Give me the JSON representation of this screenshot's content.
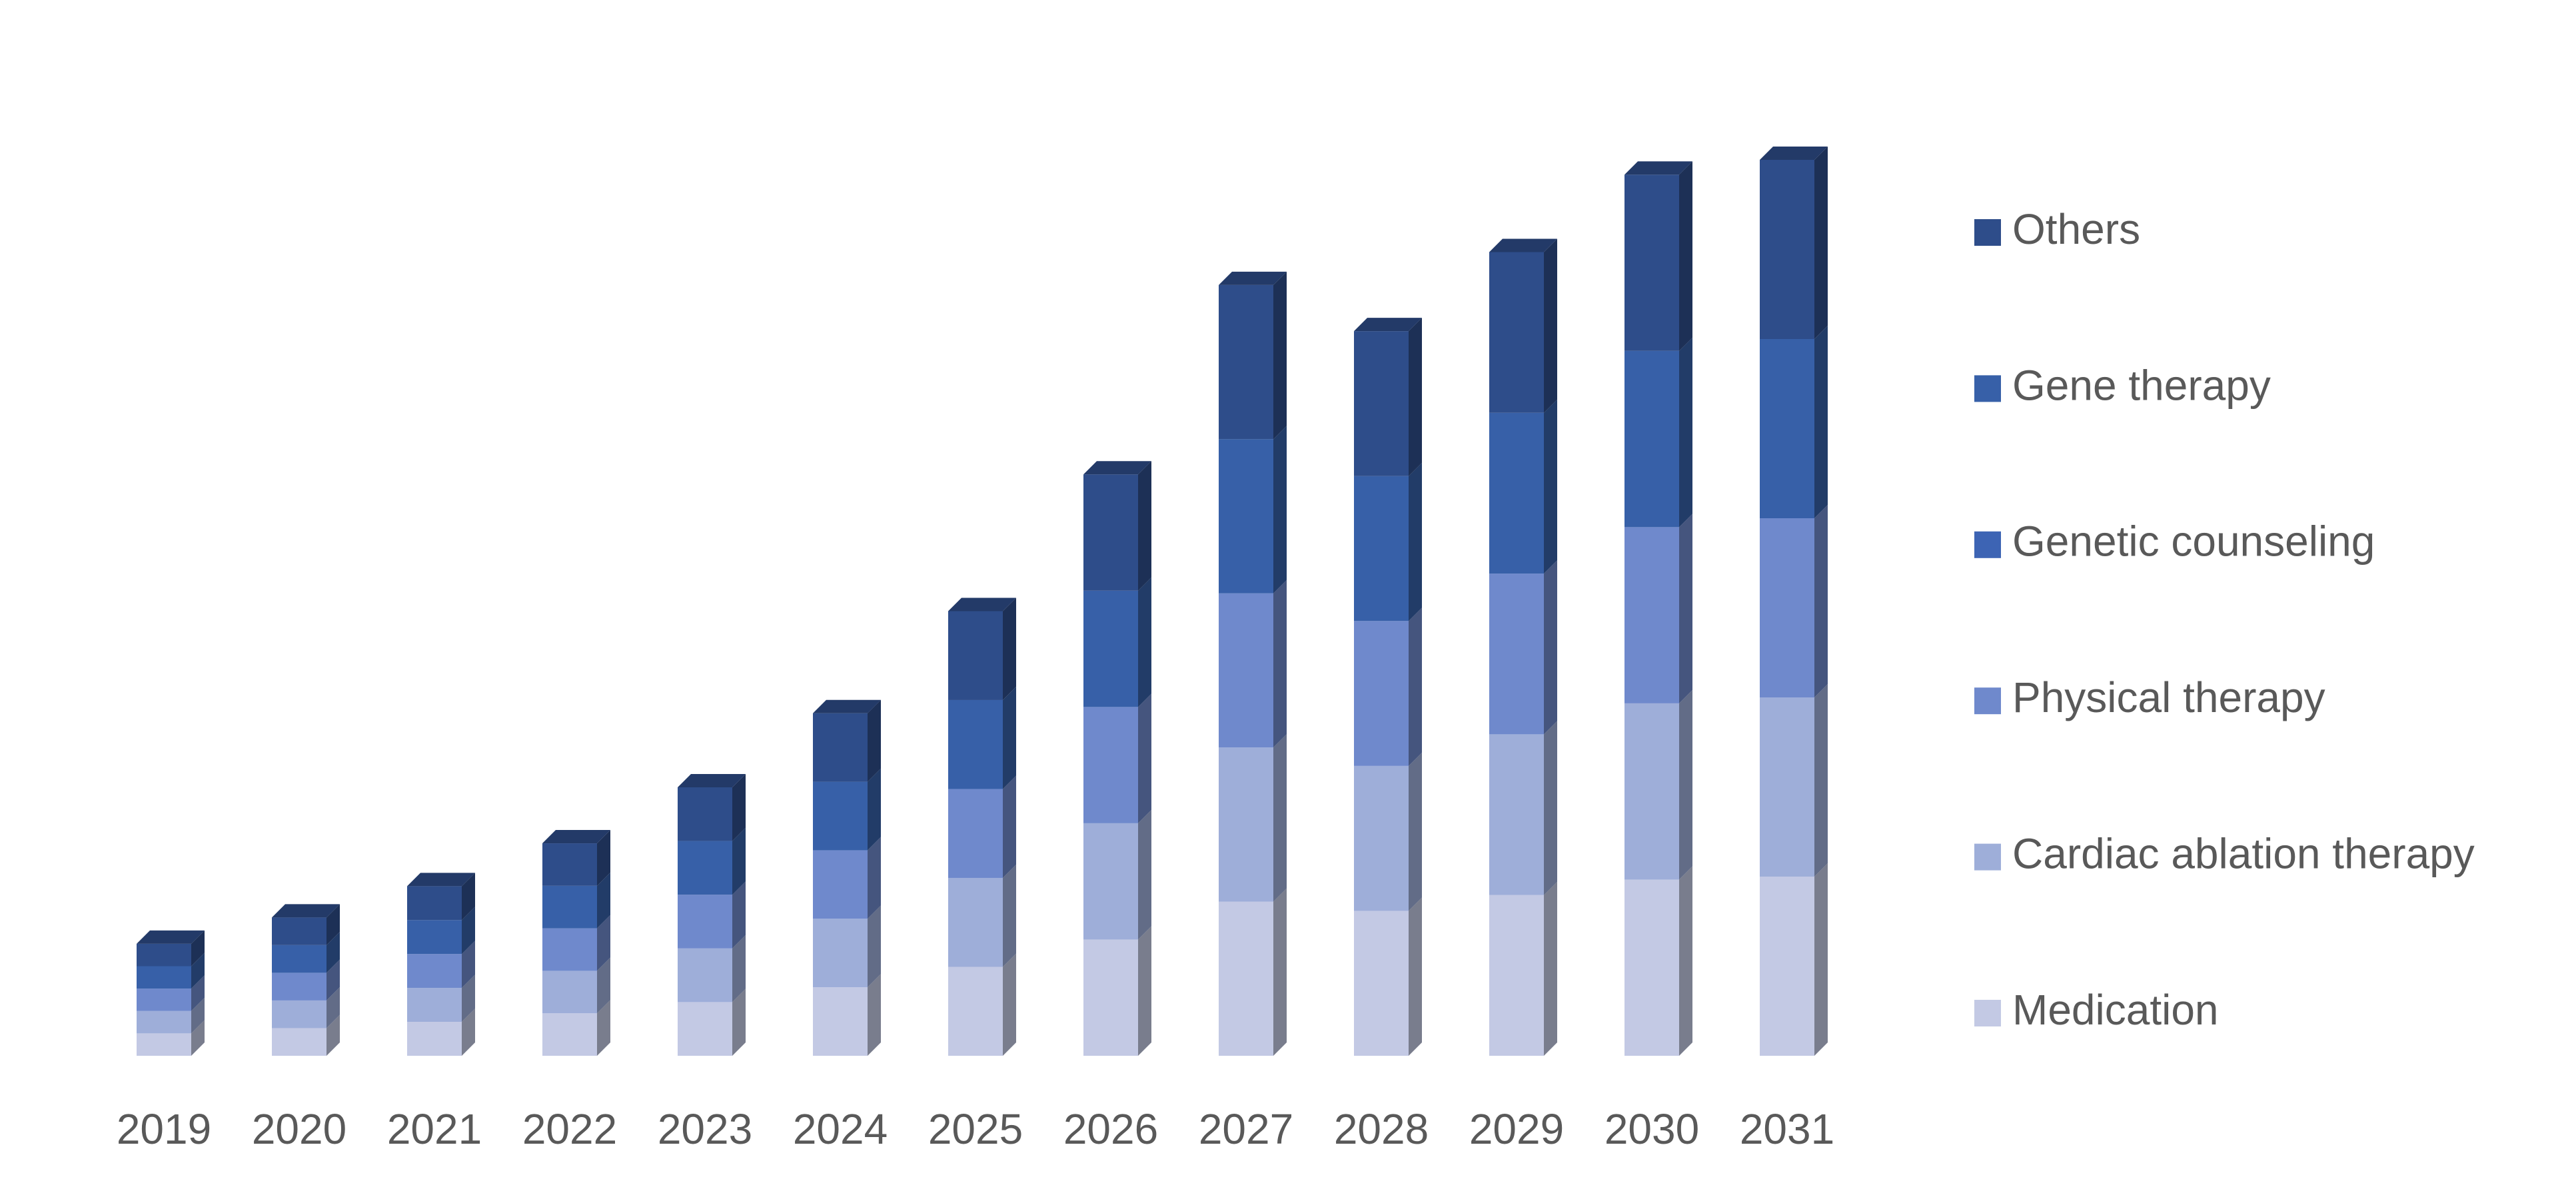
{
  "chart_data": {
    "type": "bar3d_stacked",
    "categories": [
      "2019",
      "2020",
      "2021",
      "2022",
      "2023",
      "2024",
      "2025",
      "2026",
      "2027",
      "2028",
      "2029",
      "2030",
      "2031"
    ],
    "series": [
      {
        "name": "Medication",
        "color": "#c3c9e4",
        "values": [
          13.6,
          16.8,
          20.6,
          25.8,
          32.6,
          41.6,
          54,
          70.6,
          93.6,
          88,
          97.6,
          107,
          108.8
        ]
      },
      {
        "name": "Cardiac ablation therapy",
        "color": "#9eaed9",
        "values": [
          13.6,
          16.8,
          20.6,
          25.8,
          32.6,
          41.6,
          54,
          70.6,
          93.6,
          88,
          97.6,
          107,
          108.8
        ]
      },
      {
        "name": "Physical therapy",
        "color": "#6f89cc",
        "values": [
          13.6,
          16.8,
          20.6,
          25.8,
          32.6,
          41.6,
          54,
          70.6,
          93.6,
          88,
          97.6,
          107,
          108.8
        ]
      },
      {
        "name": "Genetic counseling",
        "color": "#3d64b4",
        "values": [
          0,
          0,
          0,
          0,
          0,
          0,
          0,
          0,
          0,
          0,
          0,
          0,
          0
        ]
      },
      {
        "name": "Gene therapy",
        "color": "#3760a8",
        "values": [
          13.6,
          16.8,
          20.6,
          25.8,
          32.6,
          41.6,
          54,
          70.6,
          93.6,
          88,
          97.6,
          107,
          108.8
        ]
      },
      {
        "name": "Others",
        "color": "#2e4d8a",
        "values": [
          13.6,
          16.8,
          20.6,
          25.8,
          32.6,
          41.6,
          54,
          70.6,
          93.6,
          88,
          97.6,
          107,
          108.8
        ]
      }
    ],
    "legend": "right"
  }
}
